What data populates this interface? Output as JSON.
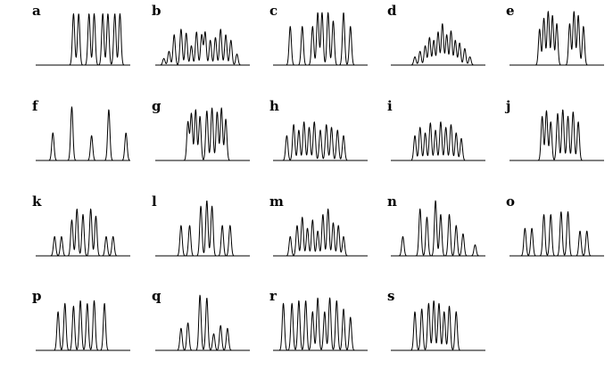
{
  "figure": {
    "panels": [
      {
        "label": "a",
        "peaks": [
          [
            0.44,
            0.93
          ],
          [
            0.5,
            0.93
          ],
          [
            0.62,
            0.93
          ],
          [
            0.68,
            0.93
          ],
          [
            0.78,
            0.93
          ],
          [
            0.84,
            0.93
          ],
          [
            0.92,
            0.93
          ],
          [
            0.98,
            0.93
          ]
        ]
      },
      {
        "label": "b",
        "peaks": [
          [
            0.1,
            0.12
          ],
          [
            0.16,
            0.25
          ],
          [
            0.22,
            0.55
          ],
          [
            0.3,
            0.65
          ],
          [
            0.36,
            0.58
          ],
          [
            0.42,
            0.35
          ],
          [
            0.48,
            0.6
          ],
          [
            0.54,
            0.55
          ],
          [
            0.58,
            0.6
          ],
          [
            0.64,
            0.45
          ],
          [
            0.7,
            0.5
          ],
          [
            0.76,
            0.65
          ],
          [
            0.82,
            0.55
          ],
          [
            0.88,
            0.45
          ],
          [
            0.95,
            0.2
          ]
        ]
      },
      {
        "label": "c",
        "peaks": [
          [
            0.2,
            0.7
          ],
          [
            0.34,
            0.7
          ],
          [
            0.46,
            0.7
          ],
          [
            0.52,
            0.95
          ],
          [
            0.57,
            0.95
          ],
          [
            0.64,
            0.95
          ],
          [
            0.7,
            0.8
          ],
          [
            0.82,
            0.95
          ],
          [
            0.9,
            0.7
          ]
        ]
      },
      {
        "label": "d",
        "peaks": [
          [
            0.28,
            0.15
          ],
          [
            0.34,
            0.25
          ],
          [
            0.4,
            0.35
          ],
          [
            0.45,
            0.5
          ],
          [
            0.5,
            0.45
          ],
          [
            0.55,
            0.6
          ],
          [
            0.6,
            0.75
          ],
          [
            0.65,
            0.55
          ],
          [
            0.7,
            0.62
          ],
          [
            0.75,
            0.45
          ],
          [
            0.8,
            0.4
          ],
          [
            0.86,
            0.3
          ],
          [
            0.92,
            0.15
          ]
        ]
      },
      {
        "label": "e",
        "peaks": [
          [
            0.35,
            0.65
          ],
          [
            0.4,
            0.85
          ],
          [
            0.45,
            0.97
          ],
          [
            0.5,
            0.9
          ],
          [
            0.55,
            0.75
          ],
          [
            0.7,
            0.75
          ],
          [
            0.75,
            0.97
          ],
          [
            0.8,
            0.9
          ],
          [
            0.86,
            0.7
          ]
        ]
      },
      {
        "label": "f",
        "peaks": [
          [
            0.2,
            0.5
          ],
          [
            0.42,
            0.97
          ],
          [
            0.65,
            0.45
          ],
          [
            0.85,
            0.92
          ],
          [
            1.05,
            0.5
          ]
        ]
      },
      {
        "label": "g",
        "peaks": [
          [
            0.38,
            0.7
          ],
          [
            0.42,
            0.85
          ],
          [
            0.47,
            0.92
          ],
          [
            0.52,
            0.8
          ],
          [
            0.6,
            0.9
          ],
          [
            0.66,
            0.95
          ],
          [
            0.72,
            0.88
          ],
          [
            0.77,
            0.95
          ],
          [
            0.82,
            0.75
          ]
        ]
      },
      {
        "label": "h",
        "peaks": [
          [
            0.16,
            0.45
          ],
          [
            0.24,
            0.65
          ],
          [
            0.3,
            0.55
          ],
          [
            0.36,
            0.7
          ],
          [
            0.42,
            0.6
          ],
          [
            0.48,
            0.7
          ],
          [
            0.55,
            0.55
          ],
          [
            0.62,
            0.65
          ],
          [
            0.68,
            0.6
          ],
          [
            0.75,
            0.55
          ],
          [
            0.82,
            0.45
          ]
        ]
      },
      {
        "label": "i",
        "peaks": [
          [
            0.28,
            0.45
          ],
          [
            0.34,
            0.6
          ],
          [
            0.4,
            0.5
          ],
          [
            0.46,
            0.68
          ],
          [
            0.52,
            0.55
          ],
          [
            0.58,
            0.7
          ],
          [
            0.64,
            0.6
          ],
          [
            0.7,
            0.65
          ],
          [
            0.76,
            0.5
          ],
          [
            0.82,
            0.4
          ]
        ]
      },
      {
        "label": "j",
        "peaks": [
          [
            0.38,
            0.8
          ],
          [
            0.43,
            0.9
          ],
          [
            0.48,
            0.7
          ],
          [
            0.56,
            0.85
          ],
          [
            0.62,
            0.92
          ],
          [
            0.68,
            0.8
          ],
          [
            0.74,
            0.88
          ],
          [
            0.8,
            0.7
          ]
        ]
      },
      {
        "label": "k",
        "peaks": [
          [
            0.22,
            0.35
          ],
          [
            0.3,
            0.35
          ],
          [
            0.42,
            0.65
          ],
          [
            0.48,
            0.85
          ],
          [
            0.55,
            0.75
          ],
          [
            0.64,
            0.85
          ],
          [
            0.7,
            0.72
          ],
          [
            0.82,
            0.35
          ],
          [
            0.9,
            0.35
          ]
        ]
      },
      {
        "label": "l",
        "peaks": [
          [
            0.3,
            0.55
          ],
          [
            0.4,
            0.55
          ],
          [
            0.53,
            0.9
          ],
          [
            0.6,
            1.0
          ],
          [
            0.66,
            0.9
          ],
          [
            0.78,
            0.55
          ],
          [
            0.87,
            0.55
          ]
        ]
      },
      {
        "label": "m",
        "peaks": [
          [
            0.2,
            0.35
          ],
          [
            0.28,
            0.55
          ],
          [
            0.34,
            0.7
          ],
          [
            0.4,
            0.5
          ],
          [
            0.46,
            0.65
          ],
          [
            0.52,
            0.45
          ],
          [
            0.58,
            0.75
          ],
          [
            0.64,
            0.85
          ],
          [
            0.7,
            0.6
          ],
          [
            0.76,
            0.55
          ],
          [
            0.82,
            0.35
          ]
        ]
      },
      {
        "label": "n",
        "peaks": [
          [
            0.14,
            0.35
          ],
          [
            0.34,
            0.85
          ],
          [
            0.42,
            0.7
          ],
          [
            0.52,
            1.0
          ],
          [
            0.58,
            0.75
          ],
          [
            0.68,
            0.75
          ],
          [
            0.76,
            0.55
          ],
          [
            0.84,
            0.4
          ],
          [
            0.98,
            0.2
          ]
        ]
      },
      {
        "label": "o",
        "peaks": [
          [
            0.18,
            0.5
          ],
          [
            0.26,
            0.5
          ],
          [
            0.4,
            0.75
          ],
          [
            0.48,
            0.75
          ],
          [
            0.6,
            0.8
          ],
          [
            0.68,
            0.8
          ],
          [
            0.82,
            0.45
          ],
          [
            0.9,
            0.45
          ]
        ]
      },
      {
        "label": "p",
        "peaks": [
          [
            0.26,
            0.7
          ],
          [
            0.34,
            0.85
          ],
          [
            0.44,
            0.8
          ],
          [
            0.52,
            0.9
          ],
          [
            0.6,
            0.85
          ],
          [
            0.68,
            0.9
          ],
          [
            0.8,
            0.85
          ]
        ]
      },
      {
        "label": "q",
        "peaks": [
          [
            0.3,
            0.4
          ],
          [
            0.38,
            0.5
          ],
          [
            0.52,
            1.0
          ],
          [
            0.6,
            0.95
          ],
          [
            0.68,
            0.3
          ],
          [
            0.76,
            0.45
          ],
          [
            0.84,
            0.4
          ]
        ]
      },
      {
        "label": "r",
        "peaks": [
          [
            0.12,
            0.85
          ],
          [
            0.22,
            0.85
          ],
          [
            0.3,
            0.9
          ],
          [
            0.38,
            0.9
          ],
          [
            0.46,
            0.7
          ],
          [
            0.52,
            0.95
          ],
          [
            0.6,
            0.7
          ],
          [
            0.66,
            0.95
          ],
          [
            0.74,
            0.9
          ],
          [
            0.82,
            0.75
          ],
          [
            0.9,
            0.6
          ]
        ]
      },
      {
        "label": "s",
        "peaks": [
          [
            0.28,
            0.7
          ],
          [
            0.36,
            0.75
          ],
          [
            0.44,
            0.85
          ],
          [
            0.5,
            0.9
          ],
          [
            0.56,
            0.85
          ],
          [
            0.62,
            0.7
          ],
          [
            0.68,
            0.8
          ],
          [
            0.76,
            0.7
          ]
        ]
      }
    ]
  }
}
